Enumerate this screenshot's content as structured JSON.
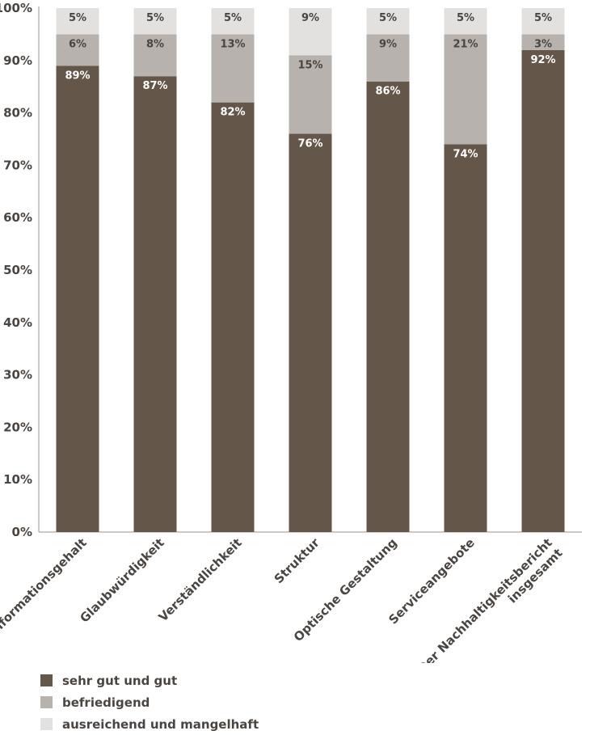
{
  "chart_data": {
    "type": "bar",
    "stacked": true,
    "categories": [
      "Informationsgehalt",
      "Glaubwürdigkeit",
      "Verständlichkeit",
      "Struktur",
      "Optische Gestaltung",
      "Serviceangebote",
      "Der Nachhaltigkeitsbericht insgesamt"
    ],
    "category_lines": [
      [
        "Informationsgehalt"
      ],
      [
        "Glaubwürdigkeit"
      ],
      [
        "Verständlichkeit"
      ],
      [
        "Struktur"
      ],
      [
        "Optische Gestaltung"
      ],
      [
        "Serviceangebote"
      ],
      [
        "Der Nachhaltigkeitsbericht",
        "insgesamt"
      ]
    ],
    "series": [
      {
        "name": "sehr gut und gut",
        "color": "#645649",
        "label_color": "#ffffff",
        "values": [
          89,
          87,
          82,
          76,
          86,
          74,
          92
        ]
      },
      {
        "name": "befriedigend",
        "color": "#b7b2ad",
        "label_color": "#4a4541",
        "values": [
          6,
          8,
          13,
          15,
          9,
          21,
          3
        ]
      },
      {
        "name": "ausreichend und mangelhaft",
        "color": "#e2e1df",
        "label_color": "#4a4541",
        "values": [
          5,
          5,
          5,
          9,
          5,
          5,
          5
        ]
      }
    ],
    "ylim": [
      0,
      100
    ],
    "yticks": [
      "0%",
      "10%",
      "20%",
      "30%",
      "40%",
      "50%",
      "60%",
      "70%",
      "80%",
      "90%",
      "100%"
    ],
    "legend_position": "bottom-left",
    "grid": false
  }
}
